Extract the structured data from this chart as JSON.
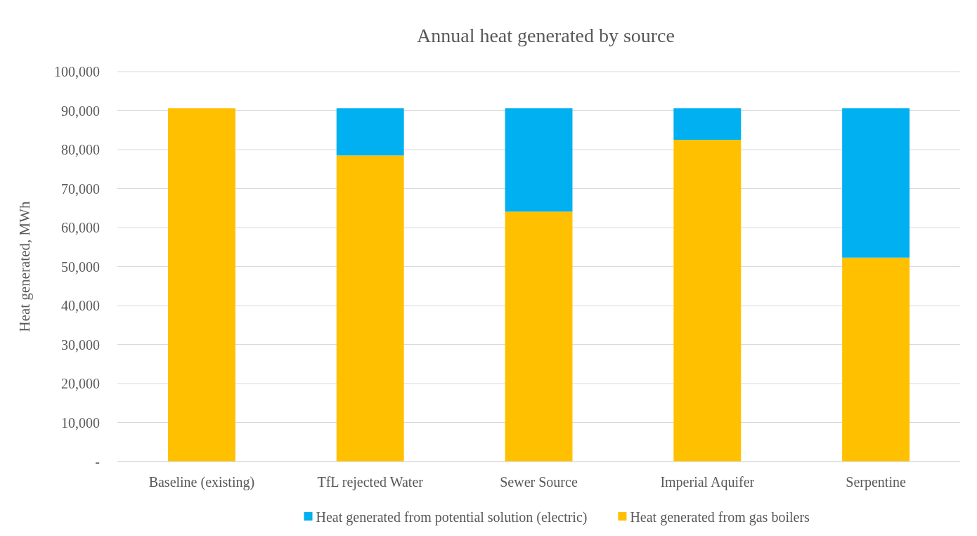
{
  "chart_data": {
    "type": "bar",
    "title": "Annual heat generated by source",
    "ylabel": "Heat generated, MWh",
    "categories": [
      "Baseline (existing)",
      "TfL rejected Water",
      "Sewer Source",
      "Imperial Aquifer",
      "Serpentine"
    ],
    "series": [
      {
        "name": "Heat generated from gas boilers",
        "color": "#ffc000",
        "values": [
          90600,
          78500,
          64100,
          82500,
          52300
        ]
      },
      {
        "name": "Heat generated from potential solution (electric)",
        "color": "#00b0f0",
        "values": [
          0,
          12100,
          26500,
          8100,
          38300
        ]
      }
    ],
    "stacked": true,
    "ylim": [
      0,
      100000
    ],
    "yticks": [
      {
        "value": 0,
        "label": "-"
      },
      {
        "value": 10000,
        "label": "10,000"
      },
      {
        "value": 20000,
        "label": "20,000"
      },
      {
        "value": 30000,
        "label": "30,000"
      },
      {
        "value": 40000,
        "label": "40,000"
      },
      {
        "value": 50000,
        "label": "50,000"
      },
      {
        "value": 60000,
        "label": "60,000"
      },
      {
        "value": 70000,
        "label": "70,000"
      },
      {
        "value": 80000,
        "label": "80,000"
      },
      {
        "value": 90000,
        "label": "90,000"
      },
      {
        "value": 100000,
        "label": "100,000"
      }
    ],
    "grid": "y",
    "legend": "bottom"
  }
}
